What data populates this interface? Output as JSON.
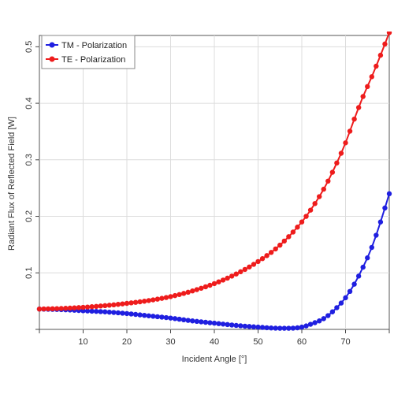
{
  "chart_data": {
    "type": "line",
    "xlabel": "Incident Angle [°]",
    "ylabel": "Radiant Flux of Reflected Field [W]",
    "xlim": [
      0,
      80
    ],
    "ylim": [
      0,
      0.52
    ],
    "x_ticks": [
      10,
      20,
      30,
      40,
      50,
      60,
      70
    ],
    "y_ticks": [
      0.1,
      0.2,
      0.3,
      0.4,
      0.5
    ],
    "grid": true,
    "legend_position": "top-left",
    "series": [
      {
        "name": "TM - Polarization",
        "color": "#1f1fe0",
        "x": [
          0,
          5,
          10,
          15,
          20,
          25,
          30,
          35,
          40,
          45,
          50,
          55,
          57,
          60,
          62,
          65,
          67,
          70,
          72,
          74,
          76,
          78,
          80
        ],
        "y": [
          0.036,
          0.035,
          0.033,
          0.031,
          0.028,
          0.024,
          0.02,
          0.015,
          0.011,
          0.007,
          0.004,
          0.002,
          0.002,
          0.004,
          0.009,
          0.019,
          0.031,
          0.056,
          0.08,
          0.11,
          0.145,
          0.19,
          0.24
        ]
      },
      {
        "name": "TE - Polarization",
        "color": "#ee1c1c",
        "x": [
          0,
          5,
          10,
          15,
          20,
          25,
          30,
          35,
          40,
          45,
          50,
          55,
          60,
          62,
          65,
          67,
          70,
          72,
          74,
          76,
          78,
          80
        ],
        "y": [
          0.036,
          0.037,
          0.039,
          0.042,
          0.046,
          0.051,
          0.058,
          0.068,
          0.081,
          0.098,
          0.12,
          0.149,
          0.19,
          0.211,
          0.248,
          0.278,
          0.33,
          0.372,
          0.412,
          0.447,
          0.485,
          0.525
        ]
      }
    ]
  }
}
